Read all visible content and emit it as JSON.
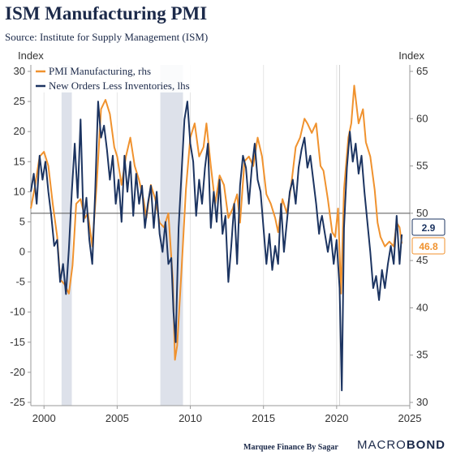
{
  "header": {
    "title": "ISM Manufacturing PMI",
    "subtitle": "Source: Institute for Supply Management (ISM)"
  },
  "footer": {
    "credit": "Marquee Finance By Sagar",
    "logo_left": "MACRO",
    "logo_right": "BOND"
  },
  "colors": {
    "pmi": "#f0922e",
    "orders": "#1c3461",
    "recession": "#dde1ea",
    "grid": "#e6e6e6",
    "reference_line": "#555555"
  },
  "chart_data": {
    "type": "line",
    "title": "ISM Manufacturing PMI",
    "left_axis": {
      "label": "Index",
      "range": [
        -25,
        30
      ],
      "ticks": [
        30,
        25,
        20,
        15,
        10,
        5,
        0,
        -5,
        -10,
        -15,
        -20,
        -25
      ]
    },
    "right_axis": {
      "label": "Index",
      "range": [
        30,
        65
      ],
      "ticks": [
        65,
        60,
        55,
        50,
        45,
        40,
        35,
        30
      ]
    },
    "x_axis": {
      "range": [
        1999.1,
        2025.0
      ],
      "ticks": [
        2000,
        2005,
        2010,
        2015,
        2020,
        2025
      ]
    },
    "reference_line": {
      "axis": "right",
      "value": 50
    },
    "recessions": [
      [
        2001.2,
        2001.9
      ],
      [
        2007.95,
        2009.5
      ]
    ],
    "legend": {
      "position": "top-left"
    },
    "grid": {
      "vertical": true,
      "horizontal": false
    },
    "series": [
      {
        "name": "PMI Manufacturing, rhs",
        "axis": "right",
        "last_value_label": "46.8",
        "points": [
          [
            1999.1,
            50.5
          ],
          [
            1999.4,
            53.0
          ],
          [
            1999.7,
            56.0
          ],
          [
            2000.0,
            56.5
          ],
          [
            2000.3,
            55.0
          ],
          [
            2000.6,
            51.0
          ],
          [
            2000.9,
            47.5
          ],
          [
            2001.1,
            43.0
          ],
          [
            2001.4,
            42.5
          ],
          [
            2001.7,
            41.5
          ],
          [
            2001.95,
            44.5
          ],
          [
            2002.2,
            51.0
          ],
          [
            2002.5,
            51.5
          ],
          [
            2002.8,
            49.5
          ],
          [
            2003.0,
            50.0
          ],
          [
            2003.3,
            46.5
          ],
          [
            2003.6,
            53.0
          ],
          [
            2003.9,
            61.0
          ],
          [
            2004.2,
            62.0
          ],
          [
            2004.5,
            60.5
          ],
          [
            2004.8,
            57.0
          ],
          [
            2005.0,
            56.0
          ],
          [
            2005.3,
            53.0
          ],
          [
            2005.6,
            56.0
          ],
          [
            2005.9,
            58.0
          ],
          [
            2006.2,
            55.0
          ],
          [
            2006.5,
            53.5
          ],
          [
            2006.8,
            51.5
          ],
          [
            2007.0,
            49.5
          ],
          [
            2007.3,
            53.0
          ],
          [
            2007.6,
            51.5
          ],
          [
            2007.9,
            49.0
          ],
          [
            2008.2,
            48.5
          ],
          [
            2008.5,
            50.0
          ],
          [
            2008.8,
            43.0
          ],
          [
            2008.95,
            34.5
          ],
          [
            2009.1,
            36.0
          ],
          [
            2009.4,
            44.0
          ],
          [
            2009.7,
            52.5
          ],
          [
            2010.0,
            58.0
          ],
          [
            2010.3,
            59.5
          ],
          [
            2010.6,
            56.0
          ],
          [
            2010.9,
            57.0
          ],
          [
            2011.1,
            59.5
          ],
          [
            2011.4,
            55.0
          ],
          [
            2011.7,
            51.0
          ],
          [
            2012.0,
            54.0
          ],
          [
            2012.3,
            53.0
          ],
          [
            2012.6,
            49.5
          ],
          [
            2012.9,
            50.5
          ],
          [
            2013.2,
            52.0
          ],
          [
            2013.4,
            49.0
          ],
          [
            2013.7,
            55.5
          ],
          [
            2014.0,
            56.0
          ],
          [
            2014.3,
            55.0
          ],
          [
            2014.6,
            58.0
          ],
          [
            2014.9,
            56.0
          ],
          [
            2015.2,
            52.0
          ],
          [
            2015.5,
            51.0
          ],
          [
            2015.8,
            49.5
          ],
          [
            2016.0,
            48.0
          ],
          [
            2016.3,
            51.5
          ],
          [
            2016.6,
            50.0
          ],
          [
            2016.9,
            53.0
          ],
          [
            2017.2,
            57.0
          ],
          [
            2017.5,
            58.0
          ],
          [
            2017.8,
            60.0
          ],
          [
            2018.0,
            59.5
          ],
          [
            2018.3,
            58.5
          ],
          [
            2018.6,
            59.5
          ],
          [
            2018.9,
            55.0
          ],
          [
            2019.1,
            54.5
          ],
          [
            2019.4,
            51.5
          ],
          [
            2019.7,
            48.0
          ],
          [
            2019.9,
            47.5
          ],
          [
            2020.1,
            50.5
          ],
          [
            2020.3,
            41.5
          ],
          [
            2020.5,
            52.5
          ],
          [
            2020.8,
            58.0
          ],
          [
            2021.0,
            59.5
          ],
          [
            2021.2,
            63.5
          ],
          [
            2021.5,
            59.5
          ],
          [
            2021.8,
            61.0
          ],
          [
            2022.0,
            57.5
          ],
          [
            2022.3,
            56.0
          ],
          [
            2022.6,
            52.5
          ],
          [
            2022.8,
            49.0
          ],
          [
            2023.0,
            47.5
          ],
          [
            2023.3,
            46.5
          ],
          [
            2023.6,
            47.0
          ],
          [
            2023.9,
            46.5
          ],
          [
            2024.1,
            49.0
          ],
          [
            2024.3,
            48.5
          ],
          [
            2024.45,
            46.8
          ]
        ]
      },
      {
        "name": "New Orders Less Inventories, lhs",
        "axis": "left",
        "last_value_label": "2.9",
        "points": [
          [
            1999.1,
            10.0
          ],
          [
            1999.3,
            13.0
          ],
          [
            1999.5,
            8.0
          ],
          [
            1999.7,
            16.0
          ],
          [
            1999.9,
            12.0
          ],
          [
            2000.1,
            15.0
          ],
          [
            2000.3,
            10.0
          ],
          [
            2000.5,
            6.0
          ],
          [
            2000.7,
            1.0
          ],
          [
            2000.9,
            2.0
          ],
          [
            2001.1,
            -5.0
          ],
          [
            2001.3,
            -2.0
          ],
          [
            2001.5,
            -7.0
          ],
          [
            2001.7,
            0.5
          ],
          [
            2001.9,
            10.0
          ],
          [
            2002.1,
            18.0
          ],
          [
            2002.3,
            9.0
          ],
          [
            2002.5,
            22.0
          ],
          [
            2002.7,
            5.0
          ],
          [
            2002.9,
            9.0
          ],
          [
            2003.1,
            2.0
          ],
          [
            2003.3,
            -2.0
          ],
          [
            2003.5,
            10.0
          ],
          [
            2003.7,
            25.0
          ],
          [
            2003.9,
            19.0
          ],
          [
            2004.1,
            21.0
          ],
          [
            2004.3,
            17.0
          ],
          [
            2004.5,
            12.0
          ],
          [
            2004.7,
            16.0
          ],
          [
            2004.9,
            8.0
          ],
          [
            2005.1,
            12.0
          ],
          [
            2005.3,
            5.0
          ],
          [
            2005.5,
            16.0
          ],
          [
            2005.7,
            10.0
          ],
          [
            2005.9,
            15.0
          ],
          [
            2006.1,
            6.0
          ],
          [
            2006.3,
            13.0
          ],
          [
            2006.5,
            8.0
          ],
          [
            2006.7,
            11.0
          ],
          [
            2006.9,
            4.0
          ],
          [
            2007.1,
            8.0
          ],
          [
            2007.3,
            11.0
          ],
          [
            2007.5,
            4.0
          ],
          [
            2007.7,
            10.0
          ],
          [
            2007.9,
            3.0
          ],
          [
            2008.1,
            0.0
          ],
          [
            2008.3,
            5.0
          ],
          [
            2008.5,
            -2.0
          ],
          [
            2008.7,
            -1.0
          ],
          [
            2008.85,
            -10.0
          ],
          [
            2009.0,
            -15.0
          ],
          [
            2009.2,
            4.0
          ],
          [
            2009.4,
            13.0
          ],
          [
            2009.6,
            22.0
          ],
          [
            2009.8,
            25.0
          ],
          [
            2010.0,
            18.0
          ],
          [
            2010.2,
            15.0
          ],
          [
            2010.4,
            6.0
          ],
          [
            2010.6,
            12.0
          ],
          [
            2010.8,
            8.0
          ],
          [
            2011.0,
            14.0
          ],
          [
            2011.2,
            18.0
          ],
          [
            2011.4,
            4.0
          ],
          [
            2011.6,
            10.0
          ],
          [
            2011.8,
            5.0
          ],
          [
            2012.0,
            12.0
          ],
          [
            2012.2,
            3.0
          ],
          [
            2012.4,
            6.0
          ],
          [
            2012.6,
            -5.0
          ],
          [
            2012.8,
            1.0
          ],
          [
            2013.0,
            8.0
          ],
          [
            2013.2,
            -2.0
          ],
          [
            2013.4,
            11.0
          ],
          [
            2013.6,
            16.0
          ],
          [
            2013.8,
            14.0
          ],
          [
            2014.0,
            8.0
          ],
          [
            2014.2,
            14.0
          ],
          [
            2014.4,
            18.0
          ],
          [
            2014.6,
            12.0
          ],
          [
            2014.8,
            10.0
          ],
          [
            2015.0,
            4.0
          ],
          [
            2015.2,
            -2.0
          ],
          [
            2015.4,
            3.0
          ],
          [
            2015.6,
            -3.0
          ],
          [
            2015.8,
            1.0
          ],
          [
            2016.0,
            -2.0
          ],
          [
            2016.2,
            8.0
          ],
          [
            2016.4,
            0.0
          ],
          [
            2016.6,
            5.0
          ],
          [
            2016.8,
            10.0
          ],
          [
            2017.0,
            12.0
          ],
          [
            2017.2,
            8.0
          ],
          [
            2017.4,
            14.0
          ],
          [
            2017.6,
            17.0
          ],
          [
            2017.8,
            19.0
          ],
          [
            2018.0,
            14.0
          ],
          [
            2018.2,
            16.0
          ],
          [
            2018.4,
            12.0
          ],
          [
            2018.6,
            8.0
          ],
          [
            2018.8,
            3.0
          ],
          [
            2018.9,
            5.0
          ],
          [
            2019.0,
            6.0
          ],
          [
            2019.2,
            3.0
          ],
          [
            2019.4,
            0.0
          ],
          [
            2019.6,
            3.0
          ],
          [
            2019.8,
            -2.0
          ],
          [
            2020.0,
            2.0
          ],
          [
            2020.2,
            -6.0
          ],
          [
            2020.35,
            -23.0
          ],
          [
            2020.5,
            4.0
          ],
          [
            2020.7,
            14.0
          ],
          [
            2020.9,
            20.0
          ],
          [
            2021.1,
            15.0
          ],
          [
            2021.3,
            18.0
          ],
          [
            2021.5,
            13.0
          ],
          [
            2021.7,
            16.0
          ],
          [
            2021.9,
            10.0
          ],
          [
            2022.1,
            5.0
          ],
          [
            2022.3,
            0.0
          ],
          [
            2022.5,
            -6.0
          ],
          [
            2022.7,
            -4.0
          ],
          [
            2022.9,
            -8.0
          ],
          [
            2023.1,
            -3.0
          ],
          [
            2023.3,
            -6.0
          ],
          [
            2023.5,
            -2.0
          ],
          [
            2023.7,
            1.0
          ],
          [
            2023.9,
            -2.0
          ],
          [
            2024.1,
            6.0
          ],
          [
            2024.3,
            -2.0
          ],
          [
            2024.45,
            2.9
          ]
        ]
      }
    ]
  }
}
